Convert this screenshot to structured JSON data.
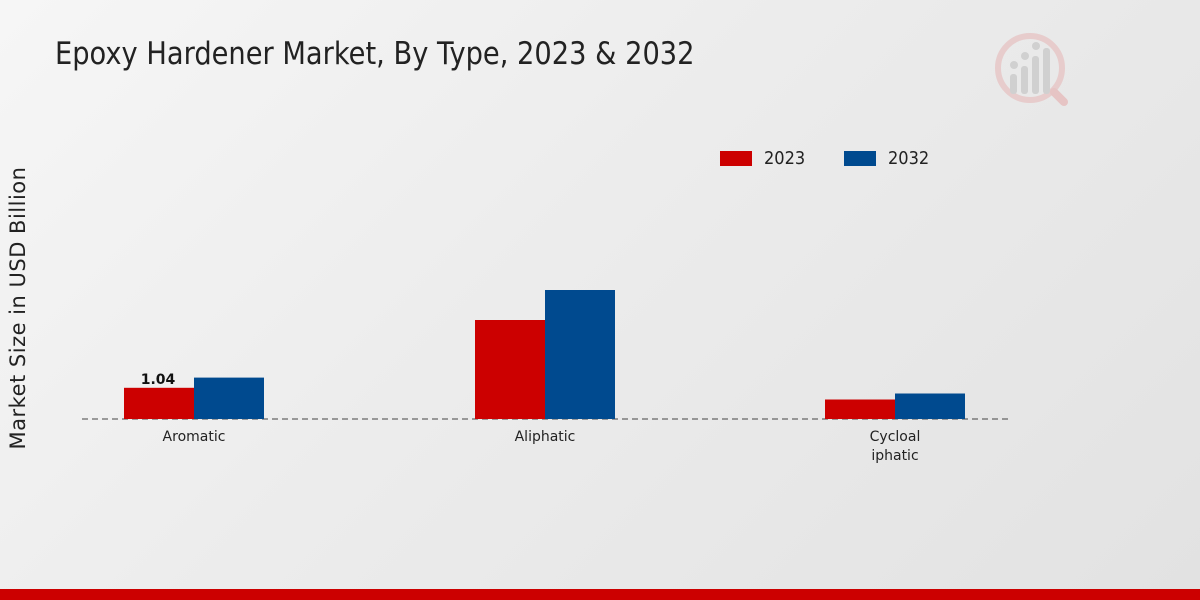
{
  "title": "Epoxy Hardener Market, By Type, 2023 & 2032",
  "colors": {
    "series_2023": "#cc0000",
    "series_2032": "#004a8f",
    "accent_bar": "#cc0000"
  },
  "logo_icon": "market-research-logo-icon",
  "chart_data": {
    "type": "bar",
    "title": "Epoxy Hardener Market, By Type, 2023 & 2032",
    "xlabel": "",
    "ylabel": "Market Size in USD Billion",
    "categories": [
      "Aromatic",
      "Aliphatic",
      "Cycloal\niphatic"
    ],
    "series": [
      {
        "name": "2023",
        "values": [
          1.04,
          3.3,
          0.65
        ]
      },
      {
        "name": "2032",
        "values": [
          1.38,
          4.3,
          0.85
        ]
      }
    ],
    "data_labels": [
      {
        "series": 0,
        "category": 0,
        "text": "1.04"
      }
    ],
    "ylim": [
      0,
      9.3
    ],
    "grid": false,
    "legend_position": "top-right"
  }
}
